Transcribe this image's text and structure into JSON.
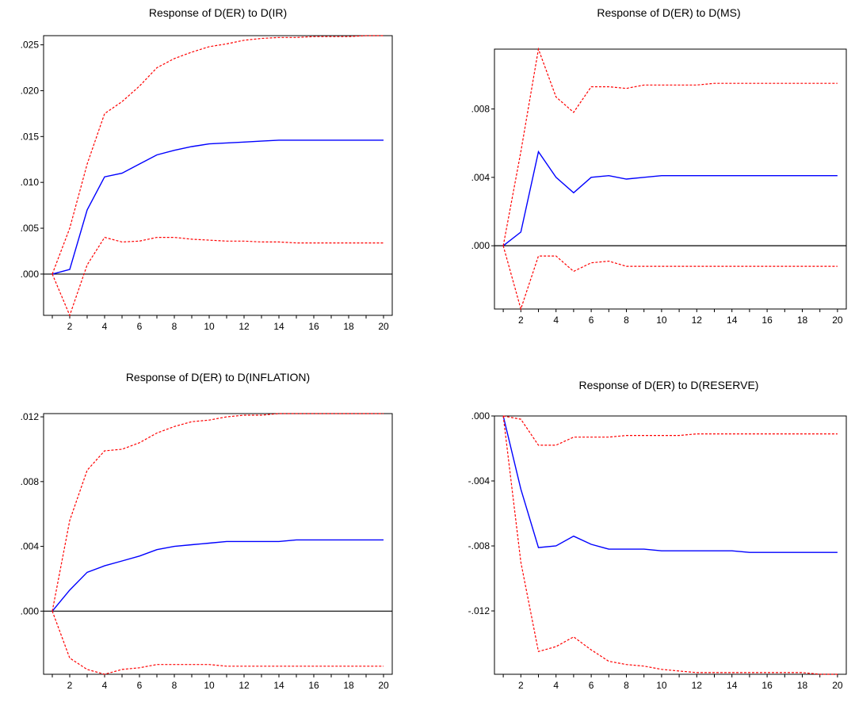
{
  "chart_data": [
    {
      "type": "line",
      "title": "Response of D(ER) to D(IR)",
      "x": [
        1,
        2,
        3,
        4,
        5,
        6,
        7,
        8,
        9,
        10,
        11,
        12,
        13,
        14,
        15,
        16,
        17,
        18,
        19,
        20
      ],
      "xticks": [
        2,
        4,
        6,
        8,
        10,
        12,
        14,
        16,
        18,
        20
      ],
      "xlim": [
        0.5,
        20.5
      ],
      "ylim": [
        -0.0045,
        0.026
      ],
      "yticks": [
        0.0,
        0.005,
        0.01,
        0.015,
        0.02,
        0.025
      ],
      "ytick_labels": [
        ".000",
        ".005",
        ".010",
        ".015",
        ".020",
        ".025"
      ],
      "zero_line": true,
      "colors": {
        "response": "#0000ff",
        "band": "#ff0000",
        "zero": "#000000"
      },
      "series": [
        {
          "role": "response",
          "values": [
            0.0,
            0.0005,
            0.007,
            0.0106,
            0.011,
            0.012,
            0.013,
            0.0135,
            0.0139,
            0.0142,
            0.0143,
            0.0144,
            0.0145,
            0.0146,
            0.0146,
            0.0146,
            0.0146,
            0.0146,
            0.0146,
            0.0146
          ]
        },
        {
          "role": "upper",
          "values": [
            0.0,
            0.005,
            0.012,
            0.0175,
            0.0188,
            0.0205,
            0.0225,
            0.0235,
            0.0242,
            0.0248,
            0.0251,
            0.0255,
            0.0257,
            0.0258,
            0.0258,
            0.0259,
            0.0259,
            0.0259,
            0.026,
            0.026
          ]
        },
        {
          "role": "lower",
          "values": [
            0.0,
            -0.0045,
            0.001,
            0.004,
            0.0035,
            0.0036,
            0.004,
            0.004,
            0.0038,
            0.0037,
            0.0036,
            0.0036,
            0.0035,
            0.0035,
            0.0034,
            0.0034,
            0.0034,
            0.0034,
            0.0034,
            0.0034
          ]
        }
      ]
    },
    {
      "type": "line",
      "title": "Response of D(ER) to D(MS)",
      "x": [
        1,
        2,
        3,
        4,
        5,
        6,
        7,
        8,
        9,
        10,
        11,
        12,
        13,
        14,
        15,
        16,
        17,
        18,
        19,
        20
      ],
      "xticks": [
        2,
        4,
        6,
        8,
        10,
        12,
        14,
        16,
        18,
        20
      ],
      "xlim": [
        0.5,
        20.5
      ],
      "ylim": [
        -0.0037,
        0.0115
      ],
      "yticks": [
        0.0,
        0.004,
        0.008
      ],
      "ytick_labels": [
        ".000",
        ".004",
        ".008"
      ],
      "zero_line": true,
      "colors": {
        "response": "#0000ff",
        "band": "#ff0000",
        "zero": "#000000"
      },
      "series": [
        {
          "role": "response",
          "values": [
            0.0,
            0.0008,
            0.0055,
            0.004,
            0.0031,
            0.004,
            0.0041,
            0.0039,
            0.004,
            0.0041,
            0.0041,
            0.0041,
            0.0041,
            0.0041,
            0.0041,
            0.0041,
            0.0041,
            0.0041,
            0.0041,
            0.0041
          ]
        },
        {
          "role": "upper",
          "values": [
            0.0,
            0.0055,
            0.0115,
            0.0087,
            0.0078,
            0.0093,
            0.0093,
            0.0092,
            0.0094,
            0.0094,
            0.0094,
            0.0094,
            0.0095,
            0.0095,
            0.0095,
            0.0095,
            0.0095,
            0.0095,
            0.0095,
            0.0095
          ]
        },
        {
          "role": "lower",
          "values": [
            0.0,
            -0.0037,
            -0.0006,
            -0.0006,
            -0.0015,
            -0.001,
            -0.0009,
            -0.0012,
            -0.0012,
            -0.0012,
            -0.0012,
            -0.0012,
            -0.0012,
            -0.0012,
            -0.0012,
            -0.0012,
            -0.0012,
            -0.0012,
            -0.0012,
            -0.0012
          ]
        }
      ]
    },
    {
      "type": "line",
      "title": "Response of D(ER) to D(INFLATION)",
      "x": [
        1,
        2,
        3,
        4,
        5,
        6,
        7,
        8,
        9,
        10,
        11,
        12,
        13,
        14,
        15,
        16,
        17,
        18,
        19,
        20
      ],
      "xticks": [
        2,
        4,
        6,
        8,
        10,
        12,
        14,
        16,
        18,
        20
      ],
      "xlim": [
        0.5,
        20.5
      ],
      "ylim": [
        -0.0039,
        0.0122
      ],
      "yticks": [
        0.0,
        0.004,
        0.008,
        0.012
      ],
      "ytick_labels": [
        ".000",
        ".004",
        ".008",
        ".012"
      ],
      "zero_line": true,
      "colors": {
        "response": "#0000ff",
        "band": "#ff0000",
        "zero": "#000000"
      },
      "series": [
        {
          "role": "response",
          "values": [
            0.0,
            0.0013,
            0.0024,
            0.0028,
            0.0031,
            0.0034,
            0.0038,
            0.004,
            0.0041,
            0.0042,
            0.0043,
            0.0043,
            0.0043,
            0.0043,
            0.0044,
            0.0044,
            0.0044,
            0.0044,
            0.0044,
            0.0044
          ]
        },
        {
          "role": "upper",
          "values": [
            0.0,
            0.0056,
            0.0087,
            0.0099,
            0.01,
            0.0104,
            0.011,
            0.0114,
            0.0117,
            0.0118,
            0.012,
            0.0121,
            0.0121,
            0.0122,
            0.0122,
            0.0122,
            0.0122,
            0.0122,
            0.0122,
            0.0122
          ]
        },
        {
          "role": "lower",
          "values": [
            0.0,
            -0.0029,
            -0.0036,
            -0.0039,
            -0.0036,
            -0.0035,
            -0.0033,
            -0.0033,
            -0.0033,
            -0.0033,
            -0.0034,
            -0.0034,
            -0.0034,
            -0.0034,
            -0.0034,
            -0.0034,
            -0.0034,
            -0.0034,
            -0.0034,
            -0.0034
          ]
        }
      ]
    },
    {
      "type": "line",
      "title": "Response of D(ER) to D(RESERVE)",
      "x": [
        1,
        2,
        3,
        4,
        5,
        6,
        7,
        8,
        9,
        10,
        11,
        12,
        13,
        14,
        15,
        16,
        17,
        18,
        19,
        20
      ],
      "xticks": [
        2,
        4,
        6,
        8,
        10,
        12,
        14,
        16,
        18,
        20
      ],
      "xlim": [
        0.5,
        20.5
      ],
      "ylim": [
        -0.0159,
        0.0
      ],
      "yticks": [
        0.0,
        -0.004,
        -0.008,
        -0.012
      ],
      "ytick_labels": [
        ".000",
        "-.004",
        "-.008",
        "-.012"
      ],
      "zero_line": false,
      "colors": {
        "response": "#0000ff",
        "band": "#ff0000",
        "zero": "#000000"
      },
      "series": [
        {
          "role": "response",
          "values": [
            0.0,
            -0.0045,
            -0.0081,
            -0.008,
            -0.0074,
            -0.0079,
            -0.0082,
            -0.0082,
            -0.0082,
            -0.0083,
            -0.0083,
            -0.0083,
            -0.0083,
            -0.0083,
            -0.0084,
            -0.0084,
            -0.0084,
            -0.0084,
            -0.0084,
            -0.0084
          ]
        },
        {
          "role": "upper",
          "values": [
            0.0,
            -0.0002,
            -0.0018,
            -0.0018,
            -0.0013,
            -0.0013,
            -0.0013,
            -0.0012,
            -0.0012,
            -0.0012,
            -0.0012,
            -0.0011,
            -0.0011,
            -0.0011,
            -0.0011,
            -0.0011,
            -0.0011,
            -0.0011,
            -0.0011,
            -0.0011
          ]
        },
        {
          "role": "lower",
          "values": [
            0.0,
            -0.009,
            -0.0145,
            -0.0142,
            -0.0136,
            -0.0144,
            -0.0151,
            -0.0153,
            -0.0154,
            -0.0156,
            -0.0157,
            -0.0158,
            -0.0158,
            -0.0158,
            -0.0158,
            -0.0158,
            -0.0158,
            -0.0158,
            -0.0159,
            -0.0159
          ]
        }
      ]
    }
  ]
}
